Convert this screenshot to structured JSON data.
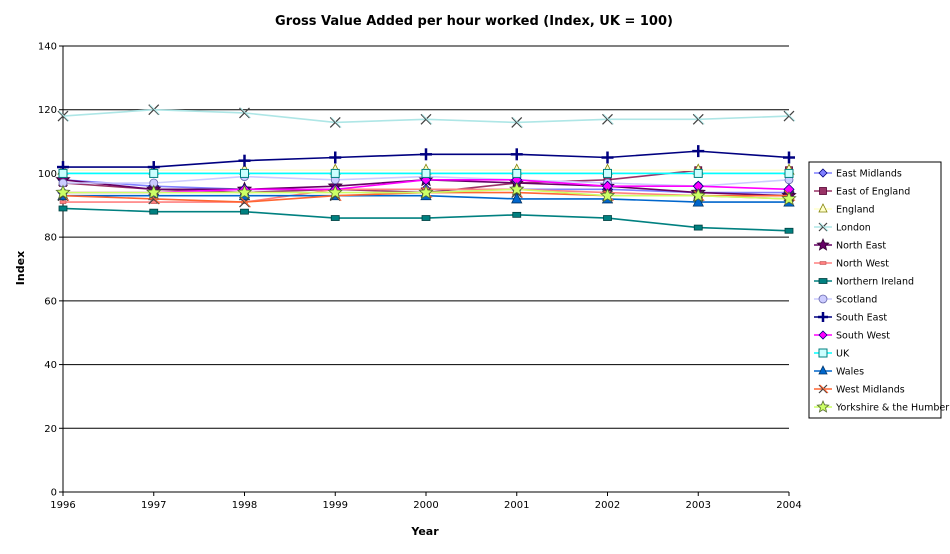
{
  "chart_data": {
    "type": "line",
    "title": "Gross Value Added per hour worked (Index, UK = 100)",
    "xlabel": "Year",
    "ylabel": "Index",
    "x": [
      "1996",
      "1997",
      "1998",
      "1999",
      "2000",
      "2001",
      "2002",
      "2003",
      "2004"
    ],
    "ylim": [
      0,
      140
    ],
    "yticks": [
      0,
      20,
      40,
      60,
      80,
      100,
      120,
      140
    ],
    "grid": true,
    "legend_position": "right",
    "series": [
      {
        "name": "East Midlands",
        "color": "#8080ff",
        "marker": "diamond",
        "values": [
          98,
          96,
          95,
          95,
          95,
          95,
          95,
          94,
          94
        ]
      },
      {
        "name": "East of England",
        "color": "#993366",
        "marker": "square",
        "values": [
          97,
          95,
          94,
          95,
          94,
          97,
          98,
          101,
          101
        ]
      },
      {
        "name": "England",
        "color": "#ffffcc",
        "marker": "triangle-open",
        "values": [
          101,
          101,
          101,
          101,
          101,
          101,
          101,
          101,
          101
        ]
      },
      {
        "name": "London",
        "color": "#aee6e6",
        "marker": "x",
        "values": [
          118,
          120,
          119,
          116,
          117,
          116,
          117,
          117,
          118
        ]
      },
      {
        "name": "North East",
        "color": "#660066",
        "marker": "star",
        "values": [
          98,
          95,
          95,
          96,
          98,
          97,
          96,
          94,
          93
        ]
      },
      {
        "name": "North West",
        "color": "#ff8080",
        "marker": "dash",
        "values": [
          91,
          91,
          91,
          95,
          95,
          95,
          94,
          93,
          92
        ]
      },
      {
        "name": "Northern Ireland",
        "color": "#008080",
        "marker": "square-small",
        "values": [
          89,
          88,
          88,
          86,
          86,
          87,
          86,
          83,
          82
        ]
      },
      {
        "name": "Scotland",
        "color": "#ccccff",
        "marker": "circle",
        "values": [
          97,
          97,
          99,
          98,
          99,
          98,
          97,
          96,
          98
        ]
      },
      {
        "name": "South East",
        "color": "#000080",
        "marker": "plus",
        "values": [
          102,
          102,
          104,
          105,
          106,
          106,
          105,
          107,
          105
        ]
      },
      {
        "name": "South West",
        "color": "#ff00ff",
        "marker": "diamond",
        "values": [
          94,
          94,
          95,
          95,
          98,
          98,
          96,
          96,
          95
        ]
      },
      {
        "name": "UK",
        "color": "#00ffff",
        "marker": "square-open",
        "values": [
          100,
          100,
          100,
          100,
          100,
          100,
          100,
          100,
          100
        ]
      },
      {
        "name": "Wales",
        "color": "#0066cc",
        "marker": "triangle",
        "values": [
          93,
          93,
          93,
          93,
          93,
          92,
          92,
          91,
          91
        ]
      },
      {
        "name": "West Midlands",
        "color": "#ff6633",
        "marker": "x",
        "values": [
          93,
          92,
          91,
          93,
          94,
          94,
          93,
          93,
          93
        ]
      },
      {
        "name": "Yorkshire & the Humber",
        "color": "#ccff66",
        "marker": "star",
        "values": [
          94,
          94,
          94,
          94,
          94,
          95,
          93,
          93,
          92
        ]
      }
    ]
  }
}
